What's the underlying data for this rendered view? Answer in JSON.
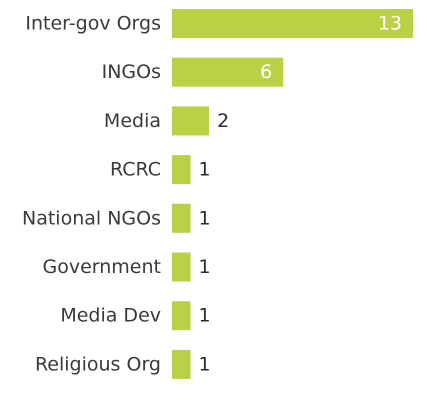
{
  "chart_data": {
    "type": "bar",
    "orientation": "horizontal",
    "categories": [
      "Inter-gov Orgs",
      "INGOs",
      "Media",
      "RCRC",
      "National NGOs",
      "Government",
      "Media Dev",
      "Religious Org"
    ],
    "values": [
      13,
      6,
      2,
      1,
      1,
      1,
      1,
      1
    ],
    "title": "",
    "xlabel": "",
    "ylabel": "",
    "xlim": [
      0,
      13
    ],
    "grid": false,
    "legend": "none",
    "bar_color": "#b9d144",
    "data_labels": true
  }
}
